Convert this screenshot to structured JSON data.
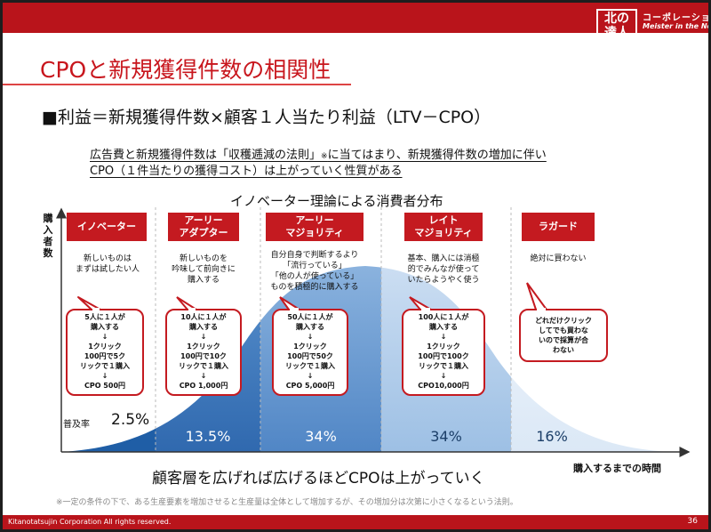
{
  "header": {
    "logo_line1": "北の",
    "logo_line2": "達人",
    "brand": "コーポレーション",
    "brand_sub": "Meister in the North"
  },
  "title": "CPOと新規獲得件数の相関性",
  "subtitle": "■利益＝新規獲得件数×顧客１人当たり利益（LTV－CPO）",
  "description": {
    "line1_main": "広告費と新規獲得件数は「収穫逓減の法則」",
    "line1_mark": "※",
    "line1_rest": "に当てはまり、新規獲得件数の増加に伴い",
    "line2": "CPO（１件当たりの獲得コスト）は上がっていく性質がある"
  },
  "diagram": {
    "title": "イノベーター理論による消費者分布",
    "y_label": [
      "購",
      "入",
      "者",
      "数"
    ],
    "x_label": "購入するまでの時間",
    "adoption_label": "普及率"
  },
  "segments": [
    {
      "name_lines": [
        "イノベーター"
      ],
      "desc_lines": [
        "新しいものは",
        "まずは試したい人"
      ],
      "bubble_lines": [
        "5人に１人が",
        "購入する",
        "↓",
        "1クリック",
        "100円で5ク",
        "リックで１購入",
        "↓",
        "CPO 500円"
      ],
      "percentage": "2.5%"
    },
    {
      "name_lines": [
        "アーリー",
        "アダプター"
      ],
      "desc_lines": [
        "新しいものを",
        "吟味して前向きに",
        "購入する"
      ],
      "bubble_lines": [
        "10人に１人が",
        "購入する",
        "↓",
        "1クリック",
        "100円で10ク",
        "リックで１購入",
        "↓",
        "CPO 1,000円"
      ],
      "percentage": "13.5%"
    },
    {
      "name_lines": [
        "アーリー",
        "マジョリティ"
      ],
      "desc_lines": [
        "自分自身で判断するより",
        "「流行っている」",
        "「他の人が使っている」",
        "ものを積極的に購入する"
      ],
      "bubble_lines": [
        "50人に１人が",
        "購入する",
        "↓",
        "1クリック",
        "100円で50ク",
        "リックで１購入",
        "↓",
        "CPO 5,000円"
      ],
      "percentage": "34%"
    },
    {
      "name_lines": [
        "レイト",
        "マジョリティ"
      ],
      "desc_lines": [
        "基本、購入には消極",
        "的でみんなが使って",
        "いたらようやく使う"
      ],
      "bubble_lines": [
        "100人に１人が",
        "購入する",
        "↓",
        "1クリック",
        "100円で100ク",
        "リックで１購入",
        "↓",
        "CPO10,000円"
      ],
      "percentage": "34%"
    },
    {
      "name_lines": [
        "ラガード"
      ],
      "desc_lines": [
        "絶対に買わない"
      ],
      "bubble_lines": [
        "どれだけクリック",
        "してでも買わな",
        "いので採算が合",
        "わない"
      ],
      "percentage": "16%"
    }
  ],
  "bottom_message": "顧客層を広げれば広げるほどCPOは上がっていく",
  "note": "※一定の条件の下で、ある生産要素を増加させると生産量は全体として増加するが、その増加分は次第に小さくなるという法則。",
  "footer": {
    "copyright": "Kitanotatsujin Corporation All rights reserved.",
    "page_number": "36"
  },
  "colors": {
    "brand_red": "#b9141b",
    "title_red": "#c8161d",
    "curve_dark_blue": "#2b6fba",
    "curve_light_blue": "#dbe8f6"
  }
}
